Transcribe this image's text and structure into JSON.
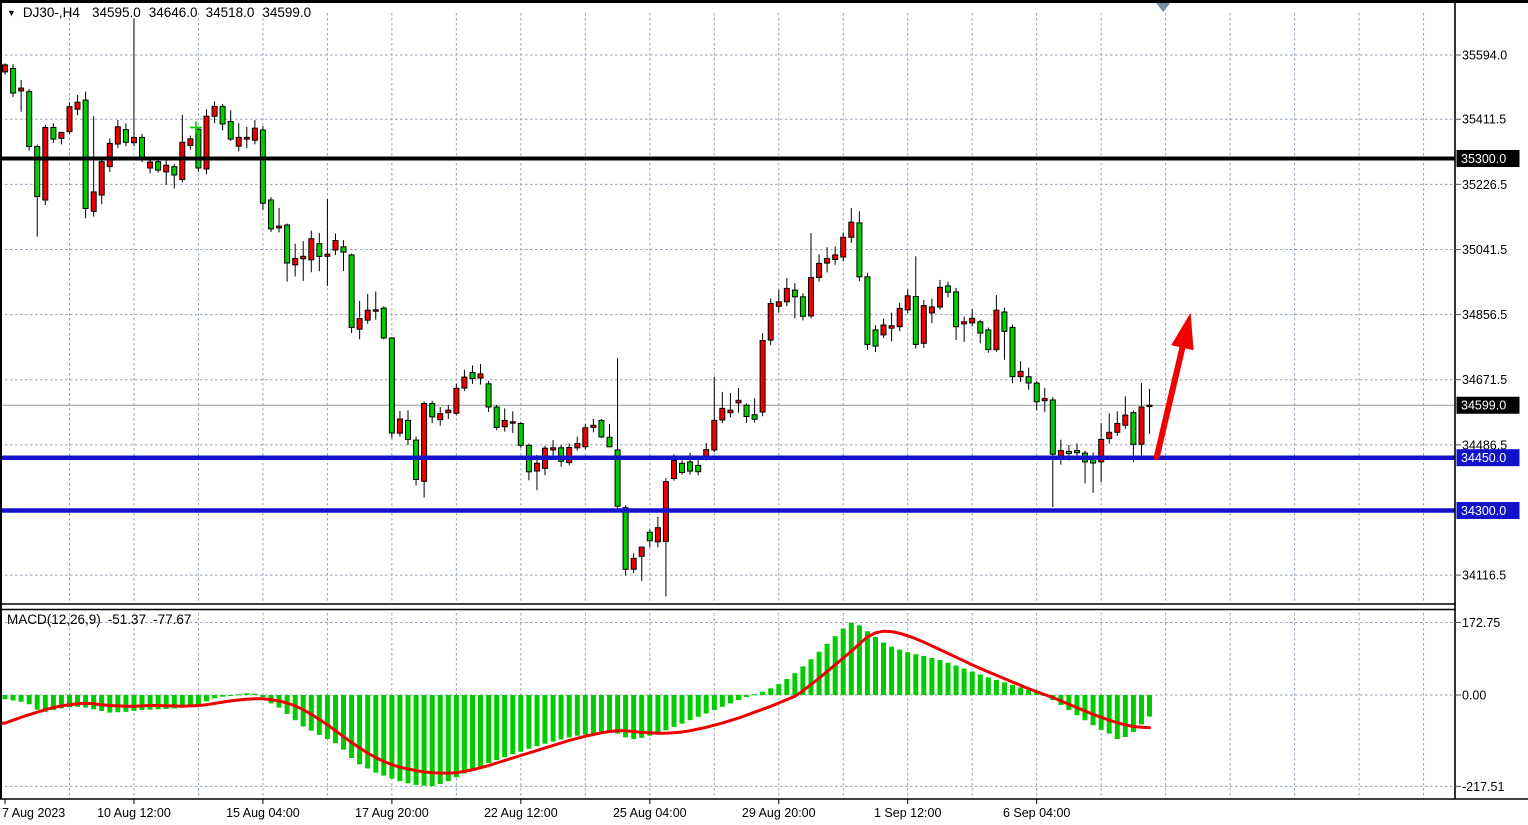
{
  "window": {
    "dropdown_icon": "▼",
    "title_symbol": "DJ30-,H4",
    "title_ohlc": {
      "open": "34595.0",
      "high": "34646.0",
      "low": "34518.0",
      "close": "34599.0"
    }
  },
  "colors": {
    "bull_candle": "#ee0000",
    "bear_candle": "#00cc00",
    "candle_outline": "#000000",
    "grid": "#93a1b8",
    "histogram": "#00cc00",
    "signal_line": "#ee0000",
    "support_line_blue": "#1212cc",
    "resistance_line_black": "#000000",
    "current_price_line": "#979797",
    "arrow": "#f20000",
    "axis_text": "#000000",
    "badge_text": "#ffffff",
    "shift_marker": "#7b8ea4"
  },
  "chart_data": {
    "type": "candlestick",
    "symbol": "DJ30-",
    "timeframe": "H4",
    "price_range_approx": [
      34050,
      35750
    ],
    "price_axis": {
      "ticks": [
        {
          "v": 35594.0,
          "label": "35594.0"
        },
        {
          "v": 35411.5,
          "label": "35411.5"
        },
        {
          "v": 35226.5,
          "label": "35226.5"
        },
        {
          "v": 35041.5,
          "label": "35041.5"
        },
        {
          "v": 34856.5,
          "label": "34856.5"
        },
        {
          "v": 34671.5,
          "label": "34671.5"
        },
        {
          "v": 34486.5,
          "label": "34486.5"
        },
        {
          "v": 34116.5,
          "label": "34116.5"
        }
      ],
      "badges": [
        {
          "v": 35300.0,
          "label": "35300.0",
          "bg": "#000000"
        },
        {
          "v": 34599.0,
          "label": "34599.0",
          "bg": "#000000"
        },
        {
          "v": 34450.0,
          "label": "34450.0",
          "bg": "#1212cc"
        },
        {
          "v": 34300.0,
          "label": "34300.0",
          "bg": "#1212cc"
        }
      ]
    },
    "time_axis": {
      "labels": [
        {
          "bar": 0,
          "text": "7 Aug 2023"
        },
        {
          "bar": 16,
          "text": "10 Aug 12:00"
        },
        {
          "bar": 32,
          "text": "15 Aug 04:00"
        },
        {
          "bar": 48,
          "text": "17 Aug 20:00"
        },
        {
          "bar": 64,
          "text": "22 Aug 12:00"
        },
        {
          "bar": 80,
          "text": "25 Aug 04:00"
        },
        {
          "bar": 96,
          "text": "29 Aug 20:00"
        },
        {
          "bar": 112,
          "text": "1 Sep 12:00"
        },
        {
          "bar": 128,
          "text": "6 Sep 04:00"
        }
      ]
    },
    "horizontal_lines": [
      {
        "price": 35300.0,
        "color": "#000000",
        "width": 4,
        "badge": "35300.0"
      },
      {
        "price": 34450.0,
        "color": "#1212cc",
        "width": 4.5,
        "badge": "34450.0"
      },
      {
        "price": 34300.0,
        "color": "#1212cc",
        "width": 4.5,
        "badge": "34300.0"
      }
    ],
    "current_price_line": {
      "price": 34599.0,
      "label": "34599.0"
    },
    "candles": [
      [
        35546,
        35570,
        35538,
        35566
      ],
      [
        35556,
        35568,
        35474,
        35486
      ],
      [
        35492,
        35523,
        35433,
        35500
      ],
      [
        35490,
        35497,
        35322,
        35334
      ],
      [
        35334,
        35340,
        35078,
        35192
      ],
      [
        35182,
        35396,
        35168,
        35388
      ],
      [
        35388,
        35400,
        35344,
        35355
      ],
      [
        35357,
        35376,
        35340,
        35374
      ],
      [
        35376,
        35460,
        35370,
        35447
      ],
      [
        35440,
        35480,
        35423,
        35460
      ],
      [
        35466,
        35490,
        35130,
        35158
      ],
      [
        35150,
        35420,
        35135,
        35205
      ],
      [
        35196,
        35300,
        35170,
        35291
      ],
      [
        35277,
        35357,
        35262,
        35343
      ],
      [
        35341,
        35409,
        35330,
        35390
      ],
      [
        35382,
        35400,
        35335,
        35346
      ],
      [
        35345,
        35697,
        35335,
        35360
      ],
      [
        35360,
        35370,
        35290,
        35300
      ],
      [
        35273,
        35295,
        35258,
        35290
      ],
      [
        35291,
        35300,
        35260,
        35267
      ],
      [
        35262,
        35295,
        35225,
        35281
      ],
      [
        35277,
        35285,
        35215,
        35253
      ],
      [
        35240,
        35424,
        35232,
        35346
      ],
      [
        35337,
        35365,
        35325,
        35356
      ],
      [
        35383,
        35390,
        35262,
        35273
      ],
      [
        35270,
        35440,
        35255,
        35420
      ],
      [
        35420,
        35462,
        35400,
        35448
      ],
      [
        35448,
        35455,
        35380,
        35398
      ],
      [
        35405,
        35437,
        35350,
        35355
      ],
      [
        35335,
        35400,
        35320,
        35360
      ],
      [
        35355,
        35390,
        35330,
        35360
      ],
      [
        35352,
        35409,
        35340,
        35386
      ],
      [
        35381,
        35392,
        35154,
        35173
      ],
      [
        35182,
        35190,
        35091,
        35100
      ],
      [
        35103,
        35160,
        35090,
        35108
      ],
      [
        35111,
        35115,
        34950,
        35003
      ],
      [
        34998,
        35058,
        34965,
        35016
      ],
      [
        35015,
        35065,
        34952,
        35022
      ],
      [
        35012,
        35095,
        34977,
        35072
      ],
      [
        35058,
        35088,
        34980,
        35022
      ],
      [
        35022,
        35185,
        34938,
        35028
      ],
      [
        35040,
        35087,
        35026,
        35067
      ],
      [
        35049,
        35068,
        34980,
        35034
      ],
      [
        35026,
        35030,
        34804,
        34820
      ],
      [
        34815,
        34895,
        34786,
        34845
      ],
      [
        34841,
        34915,
        34830,
        34869
      ],
      [
        34866,
        34922,
        34842,
        34870
      ],
      [
        34875,
        34880,
        34786,
        34790
      ],
      [
        34790,
        34793,
        34505,
        34520
      ],
      [
        34520,
        34583,
        34510,
        34560
      ],
      [
        34556,
        34585,
        34486,
        34502
      ],
      [
        34500,
        34510,
        34371,
        34388
      ],
      [
        34383,
        34610,
        34337,
        34604
      ],
      [
        34604,
        34612,
        34548,
        34566
      ],
      [
        34558,
        34594,
        34541,
        34575
      ],
      [
        34578,
        34600,
        34560,
        34585
      ],
      [
        34576,
        34660,
        34570,
        34647
      ],
      [
        34648,
        34700,
        34640,
        34679
      ],
      [
        34692,
        34712,
        34660,
        34675
      ],
      [
        34676,
        34716,
        34658,
        34688
      ],
      [
        34660,
        34668,
        34580,
        34594
      ],
      [
        34594,
        34600,
        34528,
        34536
      ],
      [
        34538,
        34590,
        34524,
        34556
      ],
      [
        34548,
        34582,
        34520,
        34552
      ],
      [
        34547,
        34552,
        34478,
        34485
      ],
      [
        34485,
        34490,
        34386,
        34410
      ],
      [
        34412,
        34458,
        34358,
        34434
      ],
      [
        34420,
        34484,
        34400,
        34477
      ],
      [
        34472,
        34500,
        34452,
        34478
      ],
      [
        34478,
        34486,
        34424,
        34440
      ],
      [
        34436,
        34490,
        34428,
        34479
      ],
      [
        34478,
        34510,
        34470,
        34490
      ],
      [
        34481,
        34545,
        34474,
        34535
      ],
      [
        34536,
        34560,
        34522,
        34542
      ],
      [
        34556,
        34560,
        34505,
        34509
      ],
      [
        34508,
        34546,
        34480,
        34481
      ],
      [
        34472,
        34733,
        34300,
        34312
      ],
      [
        34308,
        34315,
        34115,
        34133
      ],
      [
        34133,
        34178,
        34122,
        34164
      ],
      [
        34170,
        34197,
        34100,
        34196
      ],
      [
        34238,
        34246,
        34195,
        34214
      ],
      [
        34211,
        34282,
        34195,
        34251
      ],
      [
        34212,
        34392,
        34056,
        34382
      ],
      [
        34391,
        34460,
        34385,
        34442
      ],
      [
        34434,
        34452,
        34402,
        34408
      ],
      [
        34438,
        34464,
        34402,
        34412
      ],
      [
        34428,
        34455,
        34400,
        34410
      ],
      [
        34453,
        34492,
        34442,
        34473
      ],
      [
        34472,
        34680,
        34466,
        34556
      ],
      [
        34557,
        34637,
        34548,
        34590
      ],
      [
        34578,
        34634,
        34565,
        34585
      ],
      [
        34606,
        34648,
        34578,
        34613
      ],
      [
        34599,
        34604,
        34549,
        34567
      ],
      [
        34572,
        34619,
        34550,
        34559
      ],
      [
        34580,
        34804,
        34568,
        34783
      ],
      [
        34784,
        34902,
        34770,
        34888
      ],
      [
        34880,
        34927,
        34862,
        34893
      ],
      [
        34893,
        34960,
        34880,
        34931
      ],
      [
        34926,
        34946,
        34846,
        34907
      ],
      [
        34907,
        34917,
        34840,
        34852
      ],
      [
        34853,
        35088,
        34846,
        34962
      ],
      [
        34962,
        35028,
        34950,
        35002
      ],
      [
        35003,
        35048,
        34976,
        35016
      ],
      [
        35013,
        35050,
        34998,
        35026
      ],
      [
        35020,
        35090,
        35008,
        35076
      ],
      [
        35076,
        35159,
        35060,
        35119
      ],
      [
        35117,
        35150,
        34952,
        34964
      ],
      [
        34964,
        34975,
        34756,
        34772
      ],
      [
        34813,
        34826,
        34750,
        34767
      ],
      [
        34799,
        34845,
        34790,
        34827
      ],
      [
        34818,
        34862,
        34780,
        34825
      ],
      [
        34822,
        34890,
        34810,
        34874
      ],
      [
        34870,
        34928,
        34860,
        34910
      ],
      [
        34908,
        35022,
        34760,
        34772
      ],
      [
        34775,
        34898,
        34762,
        34882
      ],
      [
        34861,
        34902,
        34832,
        34878
      ],
      [
        34878,
        34955,
        34870,
        34934
      ],
      [
        34938,
        34950,
        34905,
        34920
      ],
      [
        34921,
        34932,
        34784,
        34822
      ],
      [
        34830,
        34851,
        34779,
        34836
      ],
      [
        34833,
        34872,
        34823,
        34846
      ],
      [
        34836,
        34842,
        34775,
        34804
      ],
      [
        34813,
        34820,
        34748,
        34757
      ],
      [
        34757,
        34912,
        34750,
        34869
      ],
      [
        34864,
        34876,
        34728,
        34809
      ],
      [
        34820,
        34828,
        34662,
        34680
      ],
      [
        34680,
        34724,
        34665,
        34695
      ],
      [
        34680,
        34706,
        34643,
        34662
      ],
      [
        34662,
        34668,
        34584,
        34609
      ],
      [
        34612,
        34648,
        34580,
        34618
      ],
      [
        34614,
        34622,
        34310,
        34460
      ],
      [
        34455,
        34501,
        34430,
        34470
      ],
      [
        34468,
        34486,
        34442,
        34462
      ],
      [
        34470,
        34490,
        34446,
        34464
      ],
      [
        34463,
        34470,
        34377,
        34438
      ],
      [
        34448,
        34465,
        34350,
        34435
      ],
      [
        34438,
        34548,
        34380,
        34502
      ],
      [
        34504,
        34576,
        34490,
        34522
      ],
      [
        34522,
        34582,
        34512,
        34547
      ],
      [
        34542,
        34624,
        34532,
        34571
      ],
      [
        34578,
        34584,
        34438,
        34488
      ],
      [
        34488,
        34662,
        34456,
        34594
      ],
      [
        34595,
        34646,
        34518,
        34599
      ]
    ],
    "macd": {
      "label": "MACD(12,26,9)",
      "main_value": "-51.37",
      "signal_value": "-77.67",
      "ticks": [
        {
          "v": 172.75,
          "label": "172.75"
        },
        {
          "v": 0,
          "label": "0.00"
        },
        {
          "v": -217.51,
          "label": "-217.51"
        }
      ],
      "histogram": [
        -10,
        -13,
        -16,
        -22,
        -35,
        -40,
        -36,
        -32,
        -29,
        -28,
        -30,
        -34,
        -38,
        -42,
        -41,
        -40,
        -38,
        -36,
        -35,
        -34,
        -33,
        -32,
        -30,
        -28,
        -24,
        -15,
        -8,
        -4,
        -2,
        2,
        4,
        3,
        -5,
        -20,
        -30,
        -45,
        -60,
        -75,
        -85,
        -95,
        -105,
        -115,
        -130,
        -150,
        -165,
        -175,
        -185,
        -192,
        -199,
        -205,
        -210,
        -214,
        -216,
        -217,
        -212,
        -205,
        -196,
        -187,
        -178,
        -170,
        -162,
        -155,
        -148,
        -141,
        -135,
        -128,
        -122,
        -116,
        -111,
        -106,
        -101,
        -97,
        -94,
        -91,
        -89,
        -88,
        -92,
        -101,
        -105,
        -102,
        -97,
        -91,
        -84,
        -76,
        -68,
        -60,
        -52,
        -44,
        -36,
        -28,
        -20,
        -12,
        -5,
        2,
        8,
        16,
        26,
        38,
        52,
        68,
        85,
        103,
        122,
        140,
        158,
        172,
        166,
        152,
        138,
        125,
        115,
        108,
        102,
        97,
        93,
        88,
        83,
        77,
        70,
        63,
        56,
        49,
        42,
        36,
        30,
        24,
        18,
        12,
        6,
        -2,
        -12,
        -24,
        -36,
        -48,
        -60,
        -72,
        -83,
        -92,
        -105,
        -100,
        -88,
        -70,
        -51.37
      ],
      "signal": [
        -67,
        -60,
        -53,
        -47,
        -41,
        -35,
        -30,
        -26,
        -23,
        -21,
        -20,
        -21,
        -23,
        -25,
        -26,
        -27,
        -27,
        -26,
        -25,
        -25,
        -26,
        -26,
        -27,
        -26,
        -25,
        -23,
        -20,
        -17,
        -14,
        -12,
        -10,
        -9,
        -9,
        -11,
        -14,
        -19,
        -26,
        -35,
        -46,
        -58,
        -71,
        -85,
        -99,
        -113,
        -126,
        -138,
        -149,
        -158,
        -166,
        -172,
        -176,
        -180,
        -183,
        -185,
        -186,
        -186,
        -185,
        -182,
        -178,
        -173,
        -168,
        -162,
        -156,
        -150,
        -144,
        -138,
        -132,
        -126,
        -120,
        -114,
        -108,
        -103,
        -98,
        -94,
        -90,
        -87,
        -85,
        -85,
        -87,
        -89,
        -90,
        -91,
        -91,
        -90,
        -88,
        -85,
        -81,
        -77,
        -72,
        -67,
        -61,
        -55,
        -48,
        -41,
        -34,
        -27,
        -19,
        -11,
        -3,
        10,
        25,
        40,
        56,
        72,
        88,
        104,
        122,
        138,
        148,
        152,
        151,
        147,
        141,
        134,
        126,
        117,
        108,
        99,
        90,
        81,
        72,
        63,
        55,
        47,
        39,
        31,
        23,
        15,
        8,
        1,
        -6,
        -14,
        -22,
        -30,
        -38,
        -46,
        -53,
        -60,
        -66,
        -71,
        -75,
        -77,
        -77.67
      ]
    },
    "annotations": {
      "arrow": {
        "from_bar": 142.9,
        "from_price": 34452,
        "to_bar": 147.1,
        "to_price": 34862
      },
      "cross_marker": {
        "bar": 23.7,
        "price": 35388
      },
      "shift_marker_bar": 143.7
    }
  }
}
